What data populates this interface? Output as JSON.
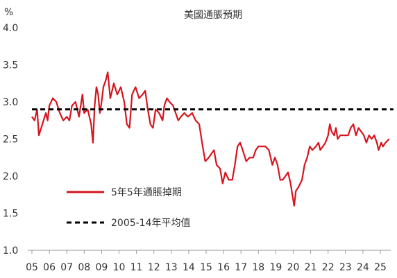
{
  "chart_data": {
    "type": "line",
    "title": "美國通脹預期",
    "ylabel": "%",
    "xlabel": "",
    "ylim": [
      1.0,
      4.0
    ],
    "xlim": [
      2005.0,
      2025.75
    ],
    "y_ticks": [
      "1.0",
      "1.5",
      "2.0",
      "2.5",
      "3.0",
      "3.5",
      "4.0"
    ],
    "x_ticks": [
      "05",
      "06",
      "07",
      "08",
      "09",
      "10",
      "11",
      "12",
      "13",
      "14",
      "15",
      "16",
      "17",
      "18",
      "19",
      "20",
      "21",
      "22",
      "23",
      "24",
      "25"
    ],
    "legend_position": "lower-left",
    "grid": false,
    "colors": {
      "series": "#d7141e",
      "reference": "#000000",
      "axis": "#999999"
    },
    "series": [
      {
        "name": "5年5年通脹掉期",
        "style": "solid",
        "points": [
          [
            2005.0,
            2.8
          ],
          [
            2005.15,
            2.75
          ],
          [
            2005.3,
            2.9
          ],
          [
            2005.4,
            2.55
          ],
          [
            2005.6,
            2.7
          ],
          [
            2005.8,
            2.85
          ],
          [
            2005.9,
            2.75
          ],
          [
            2006.0,
            2.95
          ],
          [
            2006.2,
            3.05
          ],
          [
            2006.4,
            3.0
          ],
          [
            2006.6,
            2.85
          ],
          [
            2006.8,
            2.75
          ],
          [
            2007.0,
            2.8
          ],
          [
            2007.15,
            2.75
          ],
          [
            2007.3,
            2.95
          ],
          [
            2007.5,
            3.0
          ],
          [
            2007.7,
            2.8
          ],
          [
            2007.9,
            3.1
          ],
          [
            2008.0,
            2.85
          ],
          [
            2008.2,
            2.9
          ],
          [
            2008.4,
            2.7
          ],
          [
            2008.5,
            2.45
          ],
          [
            2008.6,
            2.95
          ],
          [
            2008.7,
            3.2
          ],
          [
            2008.8,
            3.1
          ],
          [
            2008.9,
            2.85
          ],
          [
            2009.0,
            3.0
          ],
          [
            2009.1,
            3.2
          ],
          [
            2009.25,
            3.3
          ],
          [
            2009.35,
            3.4
          ],
          [
            2009.5,
            3.05
          ],
          [
            2009.7,
            3.25
          ],
          [
            2009.9,
            3.1
          ],
          [
            2010.1,
            3.2
          ],
          [
            2010.3,
            3.0
          ],
          [
            2010.45,
            2.7
          ],
          [
            2010.6,
            2.65
          ],
          [
            2010.75,
            3.1
          ],
          [
            2010.95,
            3.2
          ],
          [
            2011.15,
            3.05
          ],
          [
            2011.35,
            3.1
          ],
          [
            2011.5,
            3.15
          ],
          [
            2011.65,
            2.9
          ],
          [
            2011.8,
            2.7
          ],
          [
            2011.95,
            2.65
          ],
          [
            2012.1,
            2.9
          ],
          [
            2012.3,
            2.85
          ],
          [
            2012.5,
            2.75
          ],
          [
            2012.6,
            2.95
          ],
          [
            2012.75,
            3.05
          ],
          [
            2012.9,
            3.0
          ],
          [
            2013.1,
            2.95
          ],
          [
            2013.25,
            2.85
          ],
          [
            2013.4,
            2.75
          ],
          [
            2013.55,
            2.8
          ],
          [
            2013.75,
            2.85
          ],
          [
            2013.95,
            2.8
          ],
          [
            2014.2,
            2.85
          ],
          [
            2014.4,
            2.75
          ],
          [
            2014.6,
            2.7
          ],
          [
            2014.8,
            2.4
          ],
          [
            2014.95,
            2.2
          ],
          [
            2015.15,
            2.25
          ],
          [
            2015.3,
            2.3
          ],
          [
            2015.45,
            2.35
          ],
          [
            2015.6,
            2.15
          ],
          [
            2015.8,
            2.1
          ],
          [
            2015.95,
            1.9
          ],
          [
            2016.1,
            2.05
          ],
          [
            2016.3,
            1.95
          ],
          [
            2016.5,
            1.95
          ],
          [
            2016.65,
            2.15
          ],
          [
            2016.8,
            2.4
          ],
          [
            2016.95,
            2.45
          ],
          [
            2017.1,
            2.35
          ],
          [
            2017.3,
            2.2
          ],
          [
            2017.5,
            2.25
          ],
          [
            2017.7,
            2.25
          ],
          [
            2017.85,
            2.35
          ],
          [
            2018.0,
            2.4
          ],
          [
            2018.2,
            2.4
          ],
          [
            2018.4,
            2.4
          ],
          [
            2018.6,
            2.35
          ],
          [
            2018.8,
            2.15
          ],
          [
            2018.95,
            2.25
          ],
          [
            2019.1,
            2.15
          ],
          [
            2019.25,
            1.95
          ],
          [
            2019.4,
            1.95
          ],
          [
            2019.55,
            2.0
          ],
          [
            2019.7,
            2.05
          ],
          [
            2019.85,
            1.9
          ],
          [
            2019.95,
            1.75
          ],
          [
            2020.05,
            1.6
          ],
          [
            2020.15,
            1.8
          ],
          [
            2020.3,
            1.85
          ],
          [
            2020.5,
            1.95
          ],
          [
            2020.65,
            2.15
          ],
          [
            2020.8,
            2.25
          ],
          [
            2020.95,
            2.4
          ],
          [
            2021.1,
            2.35
          ],
          [
            2021.3,
            2.4
          ],
          [
            2021.45,
            2.45
          ],
          [
            2021.55,
            2.35
          ],
          [
            2021.7,
            2.4
          ],
          [
            2021.85,
            2.45
          ],
          [
            2022.0,
            2.55
          ],
          [
            2022.1,
            2.7
          ],
          [
            2022.2,
            2.6
          ],
          [
            2022.35,
            2.55
          ],
          [
            2022.45,
            2.65
          ],
          [
            2022.55,
            2.5
          ],
          [
            2022.7,
            2.55
          ],
          [
            2022.85,
            2.55
          ],
          [
            2023.0,
            2.55
          ],
          [
            2023.15,
            2.55
          ],
          [
            2023.3,
            2.65
          ],
          [
            2023.45,
            2.7
          ],
          [
            2023.6,
            2.55
          ],
          [
            2023.75,
            2.65
          ],
          [
            2023.9,
            2.6
          ],
          [
            2024.05,
            2.55
          ],
          [
            2024.2,
            2.45
          ],
          [
            2024.35,
            2.55
          ],
          [
            2024.5,
            2.5
          ],
          [
            2024.65,
            2.55
          ],
          [
            2024.8,
            2.45
          ],
          [
            2024.9,
            2.35
          ],
          [
            2025.05,
            2.45
          ],
          [
            2025.15,
            2.4
          ],
          [
            2025.3,
            2.45
          ],
          [
            2025.5,
            2.5
          ]
        ]
      },
      {
        "name": "2005-14年平均值",
        "style": "dashed",
        "points": [
          [
            2005.0,
            2.9
          ],
          [
            2025.75,
            2.9
          ]
        ]
      }
    ]
  }
}
